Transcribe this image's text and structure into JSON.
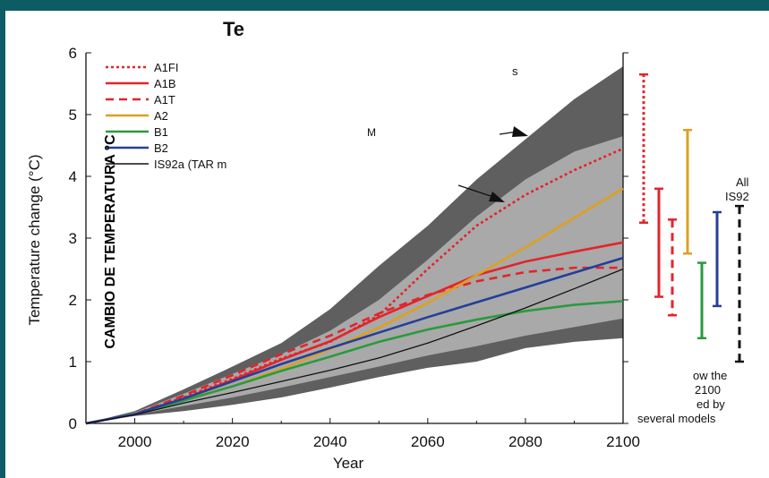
{
  "slide": {
    "title": "Te",
    "overlay_label": "CAMBIO DE TEMPERATURA °C",
    "top_fragment": "s",
    "mid_fragment": "M",
    "side_top_label": [
      "All",
      "IS92"
    ],
    "side_bottom_label": [
      "ow the",
      "2100",
      "ed by",
      "several models"
    ]
  },
  "chart_data": {
    "type": "line",
    "xlabel": "Year",
    "ylabel": "Temperature change (°C)",
    "xlim": [
      1990,
      2100
    ],
    "ylim": [
      0,
      6
    ],
    "xticks": [
      2000,
      2020,
      2040,
      2060,
      2080,
      2100
    ],
    "yticks": [
      0,
      1,
      2,
      3,
      4,
      5,
      6
    ],
    "legend_position": "top-left",
    "x": [
      1990,
      2000,
      2010,
      2020,
      2030,
      2040,
      2050,
      2060,
      2070,
      2080,
      2090,
      2100
    ],
    "series": [
      {
        "name": "A1FI",
        "color": "#e3242b",
        "dash": "dot",
        "values": [
          0,
          0.15,
          0.42,
          0.72,
          1.05,
          1.32,
          1.75,
          2.5,
          3.2,
          3.7,
          4.1,
          4.45
        ]
      },
      {
        "name": "A1B",
        "color": "#e3242b",
        "dash": "solid",
        "values": [
          0,
          0.15,
          0.4,
          0.7,
          1.03,
          1.33,
          1.72,
          2.06,
          2.4,
          2.62,
          2.78,
          2.93
        ]
      },
      {
        "name": "A1T",
        "color": "#e3242b",
        "dash": "dash",
        "values": [
          0,
          0.15,
          0.45,
          0.78,
          1.12,
          1.42,
          1.78,
          2.08,
          2.3,
          2.45,
          2.52,
          2.52
        ]
      },
      {
        "name": "A2",
        "color": "#dea020",
        "dash": "solid",
        "values": [
          0,
          0.15,
          0.38,
          0.6,
          0.88,
          1.2,
          1.55,
          1.95,
          2.4,
          2.85,
          3.33,
          3.8
        ]
      },
      {
        "name": "B1",
        "color": "#2a9a3f",
        "dash": "solid",
        "values": [
          0,
          0.15,
          0.37,
          0.6,
          0.85,
          1.08,
          1.32,
          1.52,
          1.68,
          1.82,
          1.92,
          1.98
        ]
      },
      {
        "name": "B2",
        "color": "#243f9a",
        "dash": "solid",
        "values": [
          0,
          0.15,
          0.4,
          0.68,
          0.96,
          1.22,
          1.47,
          1.72,
          1.96,
          2.2,
          2.44,
          2.68
        ]
      },
      {
        "name": "IS92a (TAR m",
        "color": "#111111",
        "dash": "solid",
        "width": 1.3,
        "values": [
          0,
          0.14,
          0.33,
          0.5,
          0.68,
          0.86,
          1.06,
          1.3,
          1.58,
          1.87,
          2.18,
          2.5
        ]
      }
    ],
    "bands": [
      {
        "label": "outer envelope",
        "color": "#5f5f5f",
        "upper": [
          0,
          0.2,
          0.55,
          0.92,
          1.3,
          1.85,
          2.55,
          3.2,
          3.95,
          4.6,
          5.25,
          5.78
        ],
        "lower": [
          0,
          0.12,
          0.2,
          0.3,
          0.42,
          0.58,
          0.75,
          0.9,
          1.0,
          1.22,
          1.32,
          1.38
        ]
      },
      {
        "label": "inner envelope",
        "color": "#a9a9a9",
        "upper": [
          0,
          0.18,
          0.48,
          0.8,
          1.12,
          1.5,
          2.0,
          2.65,
          3.35,
          3.95,
          4.4,
          4.65
        ],
        "lower": [
          0,
          0.14,
          0.28,
          0.42,
          0.58,
          0.75,
          0.92,
          1.1,
          1.25,
          1.42,
          1.56,
          1.7
        ]
      }
    ],
    "range_bars": [
      {
        "name": "A1FI",
        "color": "#e3242b",
        "dash": "dot",
        "low": 3.25,
        "high": 5.65
      },
      {
        "name": "A1B",
        "color": "#e3242b",
        "dash": "solid",
        "low": 2.05,
        "high": 3.8
      },
      {
        "name": "A1T",
        "color": "#e3242b",
        "dash": "dash",
        "low": 1.75,
        "high": 3.3
      },
      {
        "name": "A2",
        "color": "#dea020",
        "dash": "solid",
        "low": 2.75,
        "high": 4.75
      },
      {
        "name": "B1",
        "color": "#2a9a3f",
        "dash": "solid",
        "low": 1.38,
        "high": 2.6
      },
      {
        "name": "B2",
        "color": "#243f9a",
        "dash": "solid",
        "low": 1.9,
        "high": 3.42
      },
      {
        "name": "All IS92",
        "color": "#111111",
        "dash": "dash",
        "low": 1.0,
        "high": 3.52
      }
    ]
  }
}
